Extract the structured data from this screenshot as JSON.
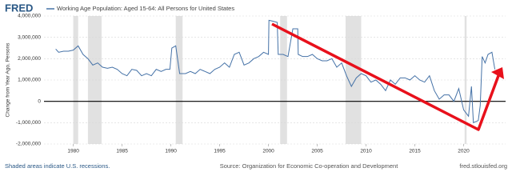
{
  "chart_data": {
    "type": "line",
    "logo": "FRED",
    "ylabel": "Change from Year Ago, Persons",
    "recession_note": "Shaded areas indicate U.S. recessions.",
    "source": "Source: Organization for Economic Co-operation and Development",
    "site": "fred.stlouisfed.org",
    "xlim": [
      1977.0,
      2024.3
    ],
    "xticks": [
      1980,
      1985,
      1990,
      1995,
      2000,
      2005,
      2010,
      2015,
      2020
    ],
    "ylim": [
      -2000000,
      4000000
    ],
    "yticks": [
      {
        "value": -2000000,
        "label": "-2,000,000"
      },
      {
        "value": -1000000,
        "label": "-1,000,000"
      },
      0,
      {
        "value": 1000000,
        "label": "1,000,000"
      },
      {
        "value": 2000000,
        "label": "2,000,000"
      },
      {
        "value": 3000000,
        "label": "3,000,000"
      },
      {
        "value": 4000000,
        "label": "4,000,000"
      }
    ],
    "grid": true,
    "zero_line": true,
    "recession_color": "#e1e1e1",
    "recessions": [
      [
        1980.0,
        1980.5
      ],
      [
        1981.5,
        1982.9
      ],
      [
        1990.5,
        1991.2
      ],
      [
        2001.2,
        2001.9
      ],
      [
        2007.9,
        2009.5
      ],
      [
        2020.1,
        2020.3
      ]
    ],
    "x": [
      1978.2,
      1978.5,
      1979,
      1979.5,
      1980,
      1980.5,
      1981,
      1981.5,
      1982,
      1982.5,
      1983,
      1983.5,
      1984,
      1984.5,
      1985,
      1985.5,
      1986,
      1986.5,
      1987,
      1987.5,
      1988,
      1988.5,
      1989,
      1989.5,
      1989.9,
      1990.1,
      1990.5,
      1990.9,
      1991.5,
      1992,
      1992.5,
      1993,
      1993.5,
      1994,
      1994.5,
      1995,
      1995.5,
      1996,
      1996.5,
      1997,
      1997.5,
      1998,
      1998.5,
      1999,
      1999.5,
      2000,
      2000.05,
      2000.5,
      2000.9,
      2001,
      2001.5,
      2002,
      2002.5,
      2003,
      2003.05,
      2003.5,
      2004,
      2004.5,
      2005,
      2005.5,
      2006,
      2006.5,
      2007,
      2007.5,
      2008,
      2008.5,
      2009,
      2009.5,
      2010,
      2010.5,
      2011,
      2011.5,
      2012,
      2012.5,
      2013,
      2013.5,
      2014,
      2014.5,
      2015,
      2015.5,
      2016,
      2016.5,
      2017,
      2017.5,
      2018,
      2018.5,
      2019,
      2019.5,
      2020,
      2020.5,
      2020.8,
      2021,
      2021.5,
      2021.7,
      2021.9,
      2022.2,
      2022.5,
      2022.9,
      2023.2
    ],
    "series": [
      {
        "name": "Working Age Population: Aged 15-64: All Persons for United States",
        "color": "#4572a7",
        "values": [
          2450000,
          2300000,
          2350000,
          2350000,
          2400000,
          2600000,
          2200000,
          2000000,
          1700000,
          1800000,
          1600000,
          1550000,
          1600000,
          1500000,
          1300000,
          1200000,
          1500000,
          1450000,
          1200000,
          1300000,
          1200000,
          1500000,
          1400000,
          1500000,
          1500000,
          2500000,
          2600000,
          1300000,
          1300000,
          1400000,
          1300000,
          1500000,
          1400000,
          1300000,
          1500000,
          1600000,
          1800000,
          1600000,
          2200000,
          2300000,
          1700000,
          1800000,
          2000000,
          2100000,
          2300000,
          2200000,
          3800000,
          3750000,
          3700000,
          2200000,
          2200000,
          2100000,
          3400000,
          3400000,
          2200000,
          2100000,
          2100000,
          2200000,
          2000000,
          1900000,
          1900000,
          2000000,
          1600000,
          1800000,
          1200000,
          700000,
          1100000,
          1300000,
          1200000,
          900000,
          1000000,
          800000,
          500000,
          1000000,
          800000,
          1100000,
          1100000,
          1000000,
          1200000,
          1000000,
          900000,
          1200000,
          500000,
          100000,
          300000,
          300000,
          0,
          600000,
          -400000,
          -700000,
          700000,
          -1000000,
          -900000,
          -200000,
          2100000,
          1800000,
          2200000,
          2300000,
          1500000
        ]
      }
    ]
  }
}
